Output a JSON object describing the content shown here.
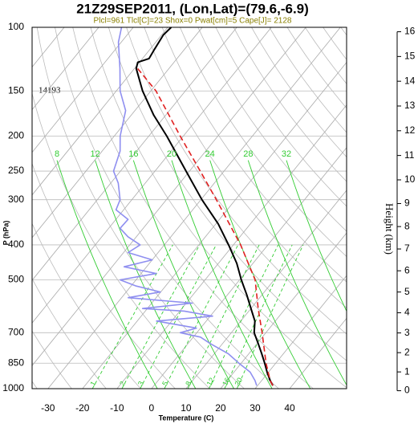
{
  "chart_data": {
    "type": "skewt",
    "title": "21Z29SEP2011, (Lon,Lat)=(79.6,-6.9)",
    "subtitle": "Plcl=961 Tlcl[C]=23 Shox=0 Pwat[cm]=5 Cape[J]= 2128",
    "xlabel": "Temperature (C)",
    "ylabel": "P (hPa)",
    "y2label": "Height (km)",
    "annotation": "14193",
    "xlim": [
      -34.6,
      56.5
    ],
    "xticks": [
      -30,
      -20,
      -10,
      0,
      10,
      20,
      30,
      40
    ],
    "ylim": [
      1000,
      100
    ],
    "yticks": [
      100,
      150,
      200,
      250,
      300,
      400,
      500,
      700,
      850,
      1000
    ],
    "log_y": true,
    "y2lim": [
      0,
      16
    ],
    "y2ticks": [
      0,
      1,
      2,
      3,
      4,
      5,
      6,
      7,
      8,
      9,
      10,
      11,
      12,
      13,
      14,
      15,
      16
    ],
    "grid": true,
    "mixing_ratio_lines": [
      1,
      2,
      3,
      5,
      8,
      12,
      16,
      20
    ],
    "moist_adiabats": [
      8,
      12,
      16,
      20,
      24,
      28,
      32
    ],
    "guide_color": "#33cc33",
    "series": [
      {
        "color": "#000000",
        "y": [
          980,
          950,
          900,
          850,
          800,
          750,
          700,
          650,
          600,
          550,
          500,
          450,
          400,
          350,
          300,
          250,
          200,
          175,
          150,
          130,
          125,
          122,
          115,
          105,
          100
        ],
        "x": [
          34.4,
          32.5,
          29.6,
          26.8,
          23.7,
          20.3,
          16.6,
          14.1,
          10.0,
          5.6,
          0.5,
          -4.7,
          -11.4,
          -19.3,
          -29.7,
          -41.0,
          -54.8,
          -63.5,
          -72.4,
          -79.5,
          -80.5,
          -78.1,
          -78.7,
          -79.5,
          -79.0
        ]
      },
      {
        "color": "#8f8ff0",
        "y": [
          980,
          950,
          900,
          850,
          800,
          750,
          720,
          700,
          680,
          650,
          630,
          610,
          600,
          580,
          560,
          540,
          520,
          500,
          480,
          460,
          440,
          420,
          400,
          380,
          360,
          340,
          320,
          300,
          270,
          250,
          220,
          200,
          170,
          150,
          130,
          110,
          100
        ],
        "x": [
          29.7,
          28.1,
          24.7,
          19.3,
          14.0,
          6.4,
          2.1,
          -4.8,
          -1.2,
          -14.4,
          0.7,
          -8.7,
          -21.4,
          -8.2,
          -28.1,
          -20.1,
          -28.5,
          -34.6,
          -25.6,
          -36.5,
          -30.0,
          -38.7,
          -37.0,
          -42.4,
          -46.7,
          -46.5,
          -52.2,
          -53.4,
          -57.8,
          -62.0,
          -64.8,
          -68.3,
          -72.7,
          -78.9,
          -84.2,
          -90.8,
          -93.4
        ]
      },
      {
        "color": "#e02020",
        "dash": true,
        "y": [
          980,
          950,
          850,
          700,
          600,
          500,
          400,
          300,
          250,
          200,
          150,
          130
        ],
        "x": [
          34.4,
          32.5,
          27.2,
          18.9,
          12.1,
          4.5,
          -7.9,
          -25.5,
          -36.9,
          -50.9,
          -68.5,
          -79.1
        ]
      }
    ]
  }
}
